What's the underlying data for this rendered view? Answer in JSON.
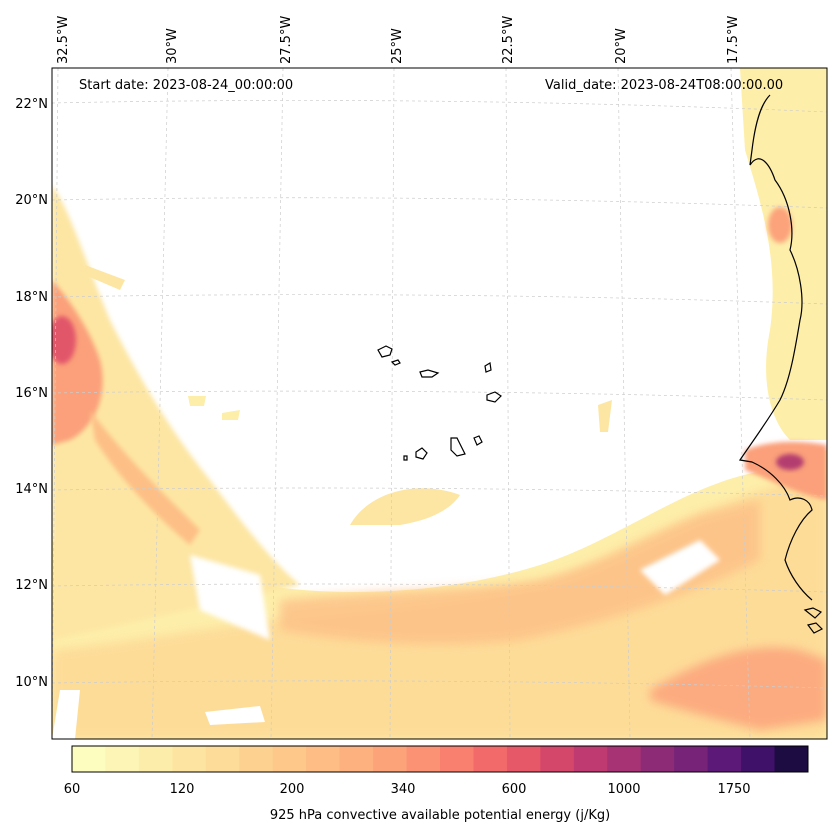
{
  "header": {
    "start_date_label": "Start date: 2023-08-24_00:00:00",
    "valid_date_label": "Valid_date: 2023-08-24T08:00:00.00"
  },
  "longitude_labels": [
    "32.5°W",
    "30°W",
    "27.5°W",
    "25°W",
    "22.5°W",
    "20°W",
    "17.5°W"
  ],
  "latitude_labels": [
    "22°N",
    "20°N",
    "18°N",
    "16°N",
    "14°N",
    "12°N",
    "10°N"
  ],
  "colorbar": {
    "tick_labels": [
      "60",
      "120",
      "200",
      "340",
      "600",
      "1000",
      "1750"
    ],
    "label": "925 hPa convective available potential energy (j/Kg)",
    "colors": [
      "#fcfdbf",
      "#fcf5b5",
      "#fdedaa",
      "#fde4a0",
      "#fddb98",
      "#fdd291",
      "#fdc88a",
      "#fdbd84",
      "#fdb17f",
      "#fda37a",
      "#fc9274",
      "#f97f6e",
      "#f26b6a",
      "#e65868",
      "#d5466b",
      "#bf3a70",
      "#a73274",
      "#8e2b77",
      "#762378",
      "#5c1977",
      "#3f1169",
      "#1d0c42"
    ]
  },
  "chart_data": {
    "type": "map",
    "title": "925 hPa convective available potential energy (j/Kg)",
    "start_date": "2023-08-24_00:00:00",
    "valid_date": "2023-08-24T08:00:00.00",
    "longitude_range": [
      "33°W",
      "16°W"
    ],
    "latitude_range": [
      "9°N",
      "22.8°N"
    ],
    "colorbar_levels": [
      60,
      120,
      200,
      340,
      600,
      1000,
      1750
    ],
    "features": [
      "Cape Verde islands",
      "West African coastline"
    ],
    "max_region": "near 17°N 33°W and 14.5°N 17°W (~1000 j/Kg)"
  }
}
